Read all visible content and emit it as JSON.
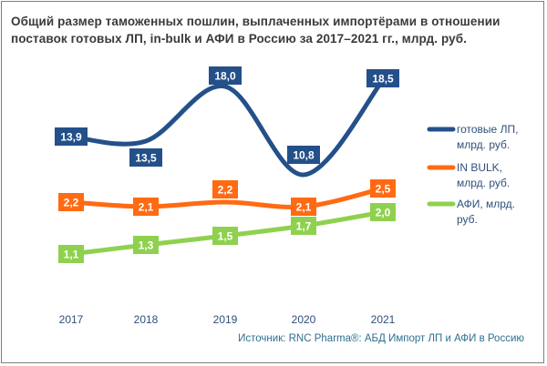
{
  "chart_data": {
    "type": "line",
    "title": "Общий размер таможенных пошлин, выплаченных импортёрами в отношении поставок готовых ЛП, in-bulk и АФИ в Россию за 2017–2021 гг., млрд. руб.",
    "categories": [
      "2017",
      "2018",
      "2019",
      "2020",
      "2021"
    ],
    "series": [
      {
        "name": "готовые ЛП, млрд. руб.",
        "legend_lines": [
          "готовые ЛП,",
          "млрд. руб."
        ],
        "color": "#24508a",
        "values": [
          13.9,
          13.5,
          18.0,
          10.8,
          18.5
        ],
        "labels": [
          "13,9",
          "13,5",
          "18,0",
          "10,8",
          "18,5"
        ]
      },
      {
        "name": "IN BULK, млрд. руб.",
        "legend_lines": [
          "IN BULK,",
          "млрд. руб."
        ],
        "color": "#ff6a13",
        "values": [
          2.2,
          2.1,
          2.2,
          2.1,
          2.5
        ],
        "labels": [
          "2,2",
          "2,1",
          "2,2",
          "2,1",
          "2,5"
        ]
      },
      {
        "name": "АФИ, млрд. руб.",
        "legend_lines": [
          "АФИ, млрд.",
          "руб."
        ],
        "color": "#8fd14f",
        "values": [
          1.1,
          1.3,
          1.5,
          1.7,
          2.0
        ],
        "labels": [
          "1,1",
          "1,3",
          "1,5",
          "1,7",
          "2,0"
        ]
      }
    ],
    "legend": "right",
    "grid": false,
    "source": "Источник: RNC Pharma®: АБД Импорт ЛП и АФИ в Россию"
  }
}
